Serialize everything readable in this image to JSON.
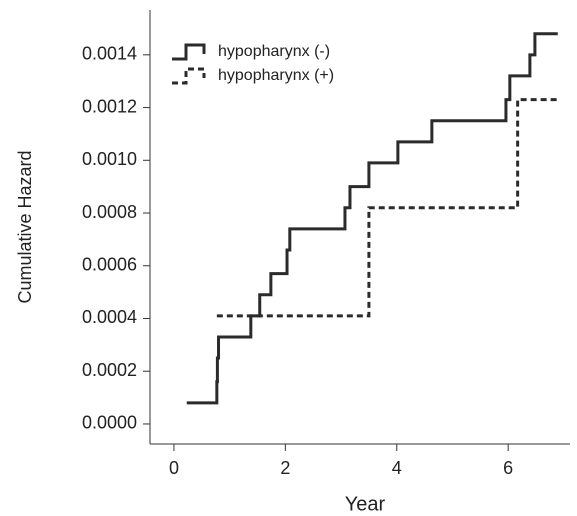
{
  "chart_data": {
    "type": "step",
    "xlabel": "Year",
    "ylabel": "Cumulative Hazard",
    "xlim": [
      -0.43,
      7.11
    ],
    "ylim": [
      -7.6e-05,
      0.00157
    ],
    "xticks": [
      0,
      2,
      4,
      6
    ],
    "yticks": [
      {
        "value": 0,
        "label": "0.0000"
      },
      {
        "value": 0.0002,
        "label": "0.0002"
      },
      {
        "value": 0.0004,
        "label": "0.0004"
      },
      {
        "value": 0.0006,
        "label": "0.0006"
      },
      {
        "value": 0.0008,
        "label": "0.0008"
      },
      {
        "value": 0.001,
        "label": "0.0010"
      },
      {
        "value": 0.0012,
        "label": "0.0012"
      },
      {
        "value": 0.0014,
        "label": "0.0014"
      }
    ],
    "legend": "upper left",
    "series": [
      {
        "name": "hypopharynx (-)",
        "color": "#2b2b2b",
        "dash": "solid",
        "x": [
          0.23,
          0.77,
          0.78,
          0.8,
          1.38,
          1.54,
          1.74,
          2.03,
          2.08,
          3.07,
          3.16,
          3.5,
          4.02,
          4.63,
          5.96,
          6.03,
          6.39,
          6.48,
          6.89
        ],
        "values": [
          8e-05,
          0.00016,
          0.00025,
          0.00033,
          0.00041,
          0.00049,
          0.00057,
          0.00066,
          0.00074,
          0.00082,
          0.0009,
          0.00099,
          0.00107,
          0.00115,
          0.00123,
          0.00132,
          0.0014,
          0.00148,
          0.00148
        ]
      },
      {
        "name": "hypopharynx (+)",
        "color": "#2b2b2b",
        "dash": "dashed",
        "x": [
          0.77,
          3.5,
          6.17,
          6.89
        ],
        "values": [
          0.00041,
          0.00082,
          0.00123,
          0.00123
        ]
      }
    ]
  }
}
